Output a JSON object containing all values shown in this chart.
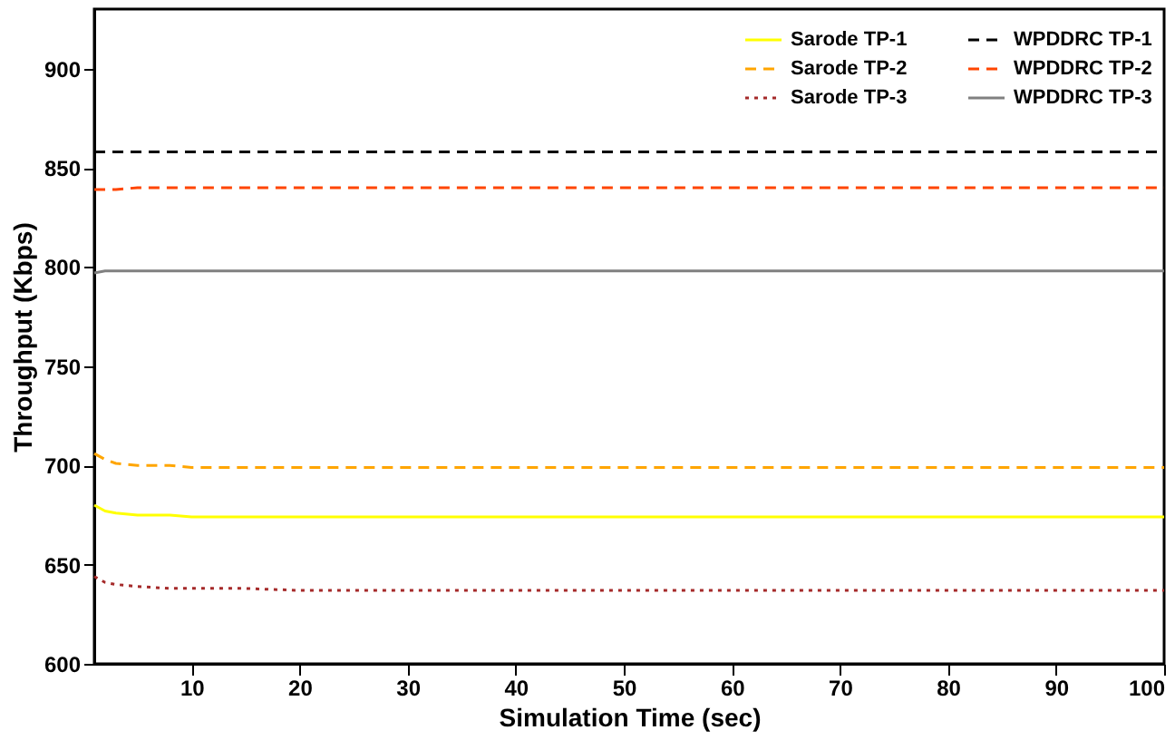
{
  "chart_data": {
    "type": "line",
    "xlabel": "Simulation Time (sec)",
    "ylabel": "Throughput (Kbps)",
    "x": [
      1,
      2,
      3,
      5,
      8,
      10,
      15,
      20,
      30,
      40,
      50,
      60,
      70,
      80,
      90,
      100
    ],
    "xlim": [
      1,
      100
    ],
    "xticks": [
      10,
      20,
      30,
      40,
      50,
      60,
      70,
      80,
      90,
      100
    ],
    "ylim": [
      600,
      930
    ],
    "yticks": [
      600,
      650,
      700,
      750,
      800,
      850,
      900
    ],
    "grid": false,
    "legend": "top right",
    "marker": "none",
    "series": [
      {
        "name": "Sarode TP-1",
        "color": "#ffff00",
        "line_style": "solid",
        "values": [
          680,
          677,
          676,
          675,
          675,
          674,
          674,
          674,
          674,
          674,
          674,
          674,
          674,
          674,
          674,
          674
        ]
      },
      {
        "name": "Sarode TP-2",
        "color": "#ffa500",
        "line_style": "dashed",
        "values": [
          706,
          703,
          701,
          700,
          700,
          699,
          699,
          699,
          699,
          699,
          699,
          699,
          699,
          699,
          699,
          699
        ]
      },
      {
        "name": "Sarode TP-3",
        "color": "#a52a2a",
        "line_style": "dotted",
        "values": [
          644,
          641,
          640,
          639,
          638,
          638,
          638,
          637,
          637,
          637,
          637,
          637,
          637,
          637,
          637,
          637
        ]
      },
      {
        "name": "WPDDRC TP-1",
        "color": "#000000",
        "line_style": "dashed",
        "values": [
          858,
          858,
          858,
          858,
          858,
          858,
          858,
          858,
          858,
          858,
          858,
          858,
          858,
          858,
          858,
          858
        ]
      },
      {
        "name": "WPDDRC TP-2",
        "color": "#ff4500",
        "line_style": "dashed",
        "values": [
          839,
          839,
          839,
          840,
          840,
          840,
          840,
          840,
          840,
          840,
          840,
          840,
          840,
          840,
          840,
          840
        ]
      },
      {
        "name": "WPDDRC TP-3",
        "color": "#808080",
        "line_style": "solid",
        "values": [
          797,
          798,
          798,
          798,
          798,
          798,
          798,
          798,
          798,
          798,
          798,
          798,
          798,
          798,
          798,
          798
        ]
      }
    ]
  }
}
